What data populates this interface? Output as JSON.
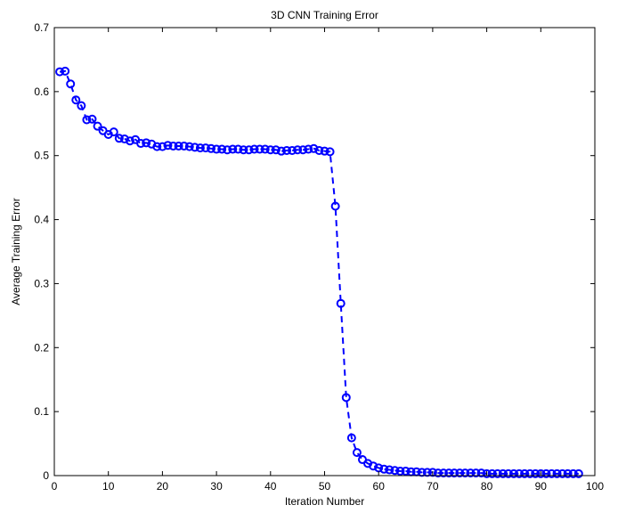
{
  "chart_data": {
    "type": "line",
    "title": "3D CNN Training Error",
    "xlabel": "Iteration Number",
    "ylabel": "Average Training Error",
    "xlim": [
      0,
      100
    ],
    "ylim": [
      0,
      0.7
    ],
    "x_ticks": [
      0,
      10,
      20,
      30,
      40,
      50,
      60,
      70,
      80,
      90,
      100
    ],
    "y_ticks": [
      0,
      0.1,
      0.2,
      0.3,
      0.4,
      0.5,
      0.6,
      0.7
    ],
    "x_tick_labels": [
      "0",
      "10",
      "20",
      "30",
      "40",
      "50",
      "60",
      "70",
      "80",
      "90",
      "100"
    ],
    "y_tick_labels": [
      "0",
      "0.1",
      "0.2",
      "0.3",
      "0.4",
      "0.5",
      "0.6",
      "0.7"
    ],
    "grid": false,
    "line_style": "dashed",
    "marker": "circle",
    "color": "#0000ff",
    "series": [
      {
        "x": [
          1,
          2,
          3,
          4,
          5,
          6,
          7,
          8,
          9,
          10,
          11,
          12,
          13,
          14,
          15,
          16,
          17,
          18,
          19,
          20,
          21,
          22,
          23,
          24,
          25,
          26,
          27,
          28,
          29,
          30,
          31,
          32,
          33,
          34,
          35,
          36,
          37,
          38,
          39,
          40,
          41,
          42,
          43,
          44,
          45,
          46,
          47,
          48,
          49,
          50,
          51,
          52,
          53,
          54,
          55,
          56,
          57,
          58,
          59,
          60,
          61,
          62,
          63,
          64,
          65,
          66,
          67,
          68,
          69,
          70,
          71,
          72,
          73,
          74,
          75,
          76,
          77,
          78,
          79,
          80,
          81,
          82,
          83,
          84,
          85,
          86,
          87,
          88,
          89,
          90,
          91,
          92,
          93,
          94,
          95,
          96,
          97
        ],
        "y": [
          0.631,
          0.632,
          0.612,
          0.587,
          0.578,
          0.556,
          0.557,
          0.546,
          0.539,
          0.533,
          0.537,
          0.527,
          0.526,
          0.523,
          0.525,
          0.519,
          0.52,
          0.518,
          0.514,
          0.514,
          0.516,
          0.515,
          0.515,
          0.515,
          0.514,
          0.513,
          0.512,
          0.512,
          0.511,
          0.51,
          0.51,
          0.509,
          0.51,
          0.51,
          0.509,
          0.509,
          0.51,
          0.51,
          0.51,
          0.509,
          0.509,
          0.507,
          0.508,
          0.508,
          0.509,
          0.509,
          0.51,
          0.511,
          0.508,
          0.507,
          0.506,
          0.421,
          0.269,
          0.122,
          0.059,
          0.036,
          0.025,
          0.019,
          0.015,
          0.012,
          0.01,
          0.009,
          0.008,
          0.007,
          0.007,
          0.006,
          0.006,
          0.005,
          0.005,
          0.005,
          0.004,
          0.004,
          0.004,
          0.004,
          0.004,
          0.004,
          0.004,
          0.004,
          0.004,
          0.003,
          0.003,
          0.003,
          0.003,
          0.003,
          0.003,
          0.003,
          0.003,
          0.003,
          0.003,
          0.003,
          0.003,
          0.003,
          0.003,
          0.003,
          0.003,
          0.003,
          0.003
        ]
      }
    ]
  }
}
